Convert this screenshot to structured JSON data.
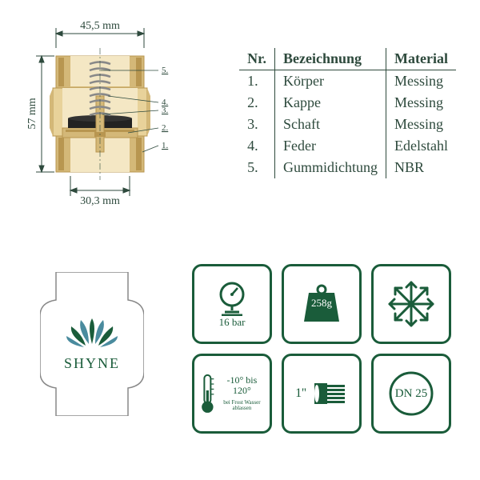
{
  "dimensions": {
    "width_mm": "45,5 mm",
    "height_mm": "57 mm",
    "port_mm": "30,3 mm"
  },
  "table": {
    "headers": {
      "nr": "Nr.",
      "name": "Bezeichnung",
      "material": "Material"
    },
    "rows": [
      {
        "nr": "1.",
        "name": "Körper",
        "material": "Messing"
      },
      {
        "nr": "2.",
        "name": "Kappe",
        "material": "Messing"
      },
      {
        "nr": "3.",
        "name": "Schaft",
        "material": "Messing"
      },
      {
        "nr": "4.",
        "name": "Feder",
        "material": "Edelstahl"
      },
      {
        "nr": "5.",
        "name": "Gummidichtung",
        "material": "NBR"
      }
    ]
  },
  "logo": {
    "name": "SHYNE"
  },
  "specs": {
    "pressure": "16 bar",
    "weight": "258g",
    "temp": "-10° bis 120°",
    "temp_note": "bei Frost Wasser ablassen",
    "thread": "1''",
    "dn": "DN 25"
  },
  "colors": {
    "body_light": "#e8d29a",
    "body_mid": "#d4b878",
    "body_dark": "#b89650",
    "spring": "#888888",
    "seal": "#222222",
    "line": "#1a5c3a",
    "dim_line": "#2e4a3d",
    "core": "#f4e7c4",
    "logo_dark": "#1a5c3a",
    "logo_teal": "#4a8b9e"
  },
  "callouts": [
    "5.",
    "4.",
    "3.",
    "2.",
    "1."
  ]
}
